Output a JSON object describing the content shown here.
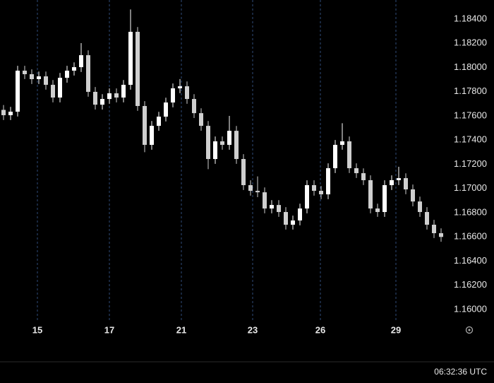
{
  "chart_data": {
    "type": "candlestick",
    "x": [
      0,
      1,
      2,
      3,
      4,
      5,
      6,
      7,
      8,
      9,
      10,
      11,
      12,
      13,
      14,
      15,
      16,
      17,
      18,
      19,
      20,
      21,
      22,
      23,
      24,
      25,
      26,
      27,
      28,
      29,
      30,
      31,
      32,
      33,
      34,
      35,
      36,
      37,
      38,
      39,
      40,
      41,
      42,
      43,
      44,
      45,
      46,
      47,
      48,
      49,
      50,
      51,
      52,
      53,
      54,
      55,
      56,
      57,
      58,
      59,
      60,
      61,
      62
    ],
    "open": [
      1.1765,
      1.17606,
      1.17635,
      1.17974,
      1.17945,
      1.17904,
      1.17927,
      1.17857,
      1.17752,
      1.17915,
      1.17974,
      1.18003,
      1.18102,
      1.17799,
      1.17693,
      1.1774,
      1.17787,
      1.17752,
      1.17857,
      1.18295,
      1.17682,
      1.17361,
      1.17518,
      1.17594,
      1.17711,
      1.17828,
      1.17845,
      1.1774,
      1.17623,
      1.17518,
      1.17244,
      1.1739,
      1.17361,
      1.17477,
      1.17244,
      1.17028,
      1.16981,
      1.16969,
      1.16835,
      1.16864,
      1.16806,
      1.16701,
      1.16736,
      1.16835,
      1.17028,
      1.16981,
      1.16952,
      1.17168,
      1.17361,
      1.1739,
      1.17168,
      1.17127,
      1.17069,
      1.16835,
      1.16806,
      1.17028,
      1.17069,
      1.17086,
      1.16993,
      1.16893,
      1.16806,
      1.16701,
      1.16631
    ],
    "high": [
      1.1769,
      1.17675,
      1.18014,
      1.18014,
      1.17985,
      1.17967,
      1.17967,
      1.17897,
      1.17955,
      1.18014,
      1.18043,
      1.18202,
      1.18142,
      1.17839,
      1.1778,
      1.17827,
      1.17827,
      1.17897,
      1.1848,
      1.18335,
      1.17722,
      1.17558,
      1.17634,
      1.17751,
      1.17868,
      1.17905,
      1.17885,
      1.1778,
      1.17663,
      1.17558,
      1.1743,
      1.1743,
      1.176,
      1.17517,
      1.17284,
      1.17068,
      1.171,
      1.17009,
      1.16904,
      1.16904,
      1.16846,
      1.16776,
      1.16875,
      1.17068,
      1.17068,
      1.17021,
      1.17208,
      1.17401,
      1.1754,
      1.1743,
      1.17208,
      1.17167,
      1.17109,
      1.16875,
      1.17068,
      1.17109,
      1.1718,
      1.17126,
      1.17033,
      1.16933,
      1.16846,
      1.16741,
      1.16671
    ],
    "low": [
      1.17566,
      1.17566,
      1.17595,
      1.17905,
      1.17864,
      1.17864,
      1.17817,
      1.17712,
      1.17712,
      1.17875,
      1.17934,
      1.17963,
      1.17759,
      1.17653,
      1.17653,
      1.177,
      1.17712,
      1.17712,
      1.17817,
      1.17642,
      1.173,
      1.17321,
      1.17478,
      1.17554,
      1.17671,
      1.17788,
      1.177,
      1.17583,
      1.17478,
      1.1716,
      1.17204,
      1.17321,
      1.17321,
      1.17204,
      1.16988,
      1.16941,
      1.16929,
      1.16795,
      1.16795,
      1.16766,
      1.16661,
      1.16661,
      1.16696,
      1.16795,
      1.16941,
      1.16912,
      1.16912,
      1.17128,
      1.17321,
      1.17128,
      1.17087,
      1.17029,
      1.16795,
      1.16766,
      1.16766,
      1.16988,
      1.17029,
      1.16953,
      1.16853,
      1.16766,
      1.16661,
      1.16591,
      1.1656
    ],
    "close": [
      1.17606,
      1.17635,
      1.17974,
      1.17945,
      1.17904,
      1.17927,
      1.17857,
      1.17752,
      1.17915,
      1.17974,
      1.18003,
      1.18102,
      1.17799,
      1.17693,
      1.1774,
      1.17787,
      1.17752,
      1.17857,
      1.18295,
      1.17682,
      1.17361,
      1.17518,
      1.17594,
      1.17711,
      1.17828,
      1.17845,
      1.1774,
      1.17623,
      1.17518,
      1.17244,
      1.1739,
      1.17361,
      1.17477,
      1.17244,
      1.17028,
      1.16981,
      1.16969,
      1.16835,
      1.16864,
      1.16806,
      1.16701,
      1.16736,
      1.16835,
      1.17028,
      1.16981,
      1.16952,
      1.17168,
      1.17361,
      1.1739,
      1.17168,
      1.17127,
      1.17069,
      1.16835,
      1.16806,
      1.17028,
      1.17069,
      1.17086,
      1.16993,
      1.16893,
      1.16806,
      1.16701,
      1.16631,
      1.166
    ],
    "up_color": "#ffffff",
    "down_color": "#cfcfcf",
    "xlim": [
      -0.5,
      62.5
    ],
    "xticks": [
      {
        "value": 4.8,
        "label": "15"
      },
      {
        "value": 15,
        "label": "17"
      },
      {
        "value": 25.2,
        "label": "21"
      },
      {
        "value": 35.3,
        "label": "23"
      },
      {
        "value": 44.9,
        "label": "26"
      },
      {
        "value": 55.6,
        "label": "29"
      }
    ],
    "ylim": [
      1.15901,
      1.18558
    ],
    "yticks": [
      {
        "value": 1.16,
        "label": "1.16000"
      },
      {
        "value": 1.162,
        "label": "1.16200"
      },
      {
        "value": 1.164,
        "label": "1.16400"
      },
      {
        "value": 1.166,
        "label": "1.16600"
      },
      {
        "value": 1.168,
        "label": "1.16800"
      },
      {
        "value": 1.17,
        "label": "1.17000"
      },
      {
        "value": 1.172,
        "label": "1.17200"
      },
      {
        "value": 1.174,
        "label": "1.17400"
      },
      {
        "value": 1.176,
        "label": "1.17600"
      },
      {
        "value": 1.178,
        "label": "1.17800"
      },
      {
        "value": 1.18,
        "label": "1.18000"
      },
      {
        "value": 1.182,
        "label": "1.18200"
      },
      {
        "value": 1.184,
        "label": "1.18400"
      }
    ],
    "grid": true,
    "clock": "06:32:36 UTC"
  }
}
